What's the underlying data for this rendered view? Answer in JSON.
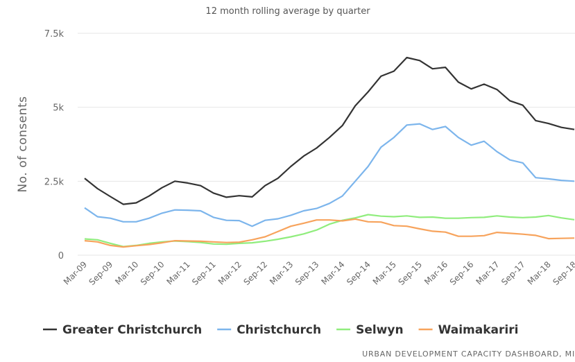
{
  "chart_data": {
    "type": "line",
    "subtitle": "12 month rolling average by quarter",
    "y_label": "No. of consents",
    "source": "URBAN DEVELOPMENT CAPACITY DASHBOARD, MI",
    "categories": [
      "Mar-09",
      null,
      "Sep-09",
      null,
      "Mar-10",
      null,
      "Sep-10",
      null,
      "Mar-11",
      null,
      "Sep-11",
      null,
      "Mar-12",
      null,
      "Sep-12",
      null,
      "Mar-13",
      null,
      "Sep-13",
      null,
      "Mar-14",
      null,
      "Sep-14",
      null,
      "Mar-15",
      null,
      "Sep-15",
      null,
      "Mar-16",
      null,
      "Sep-16",
      null,
      "Mar-17",
      null,
      "Sep-17",
      null,
      "Mar-18",
      null,
      "Sep-18"
    ],
    "ylim": [
      0,
      7500
    ],
    "yticks": [
      0,
      {
        "value": 2500,
        "label": "2.5k"
      },
      {
        "value": 5000,
        "label": "5k"
      },
      {
        "value": 7500,
        "label": "7.5k"
      }
    ],
    "grid": true,
    "legend": "bottom",
    "series": [
      {
        "name": "Greater Christchurch",
        "color": "#333333",
        "values": [
          2600,
          2250,
          1980,
          1720,
          1770,
          2000,
          2280,
          2500,
          2440,
          2350,
          2100,
          1960,
          2010,
          1970,
          2350,
          2600,
          3000,
          3350,
          3620,
          3980,
          4380,
          5050,
          5520,
          6050,
          6220,
          6680,
          6580,
          6300,
          6350,
          5850,
          5620,
          5780,
          5600,
          5220,
          5070,
          4550,
          4450,
          4320,
          4250
        ]
      },
      {
        "name": "Christchurch",
        "color": "#7cb5ec",
        "values": [
          1600,
          1300,
          1250,
          1130,
          1130,
          1250,
          1420,
          1530,
          1520,
          1500,
          1280,
          1180,
          1170,
          980,
          1180,
          1230,
          1350,
          1500,
          1580,
          1750,
          2000,
          2500,
          3000,
          3650,
          3980,
          4400,
          4440,
          4250,
          4350,
          3980,
          3720,
          3850,
          3500,
          3220,
          3120,
          2620,
          2580,
          2530,
          2500
        ]
      },
      {
        "name": "Selwyn",
        "color": "#90ed7d",
        "values": [
          550,
          520,
          400,
          290,
          330,
          400,
          450,
          480,
          460,
          430,
          380,
          370,
          400,
          420,
          470,
          540,
          620,
          720,
          850,
          1050,
          1180,
          1260,
          1370,
          1320,
          1300,
          1330,
          1280,
          1290,
          1250,
          1250,
          1270,
          1280,
          1330,
          1290,
          1270,
          1290,
          1340,
          1260,
          1200
        ]
      },
      {
        "name": "Waimakariri",
        "color": "#f7a35c",
        "values": [
          490,
          450,
          330,
          280,
          320,
          360,
          420,
          490,
          480,
          470,
          450,
          430,
          440,
          520,
          620,
          800,
          980,
          1080,
          1190,
          1190,
          1160,
          1220,
          1130,
          1120,
          1000,
          980,
          890,
          810,
          780,
          640,
          640,
          660,
          770,
          740,
          710,
          670,
          560,
          570,
          580
        ]
      }
    ]
  }
}
